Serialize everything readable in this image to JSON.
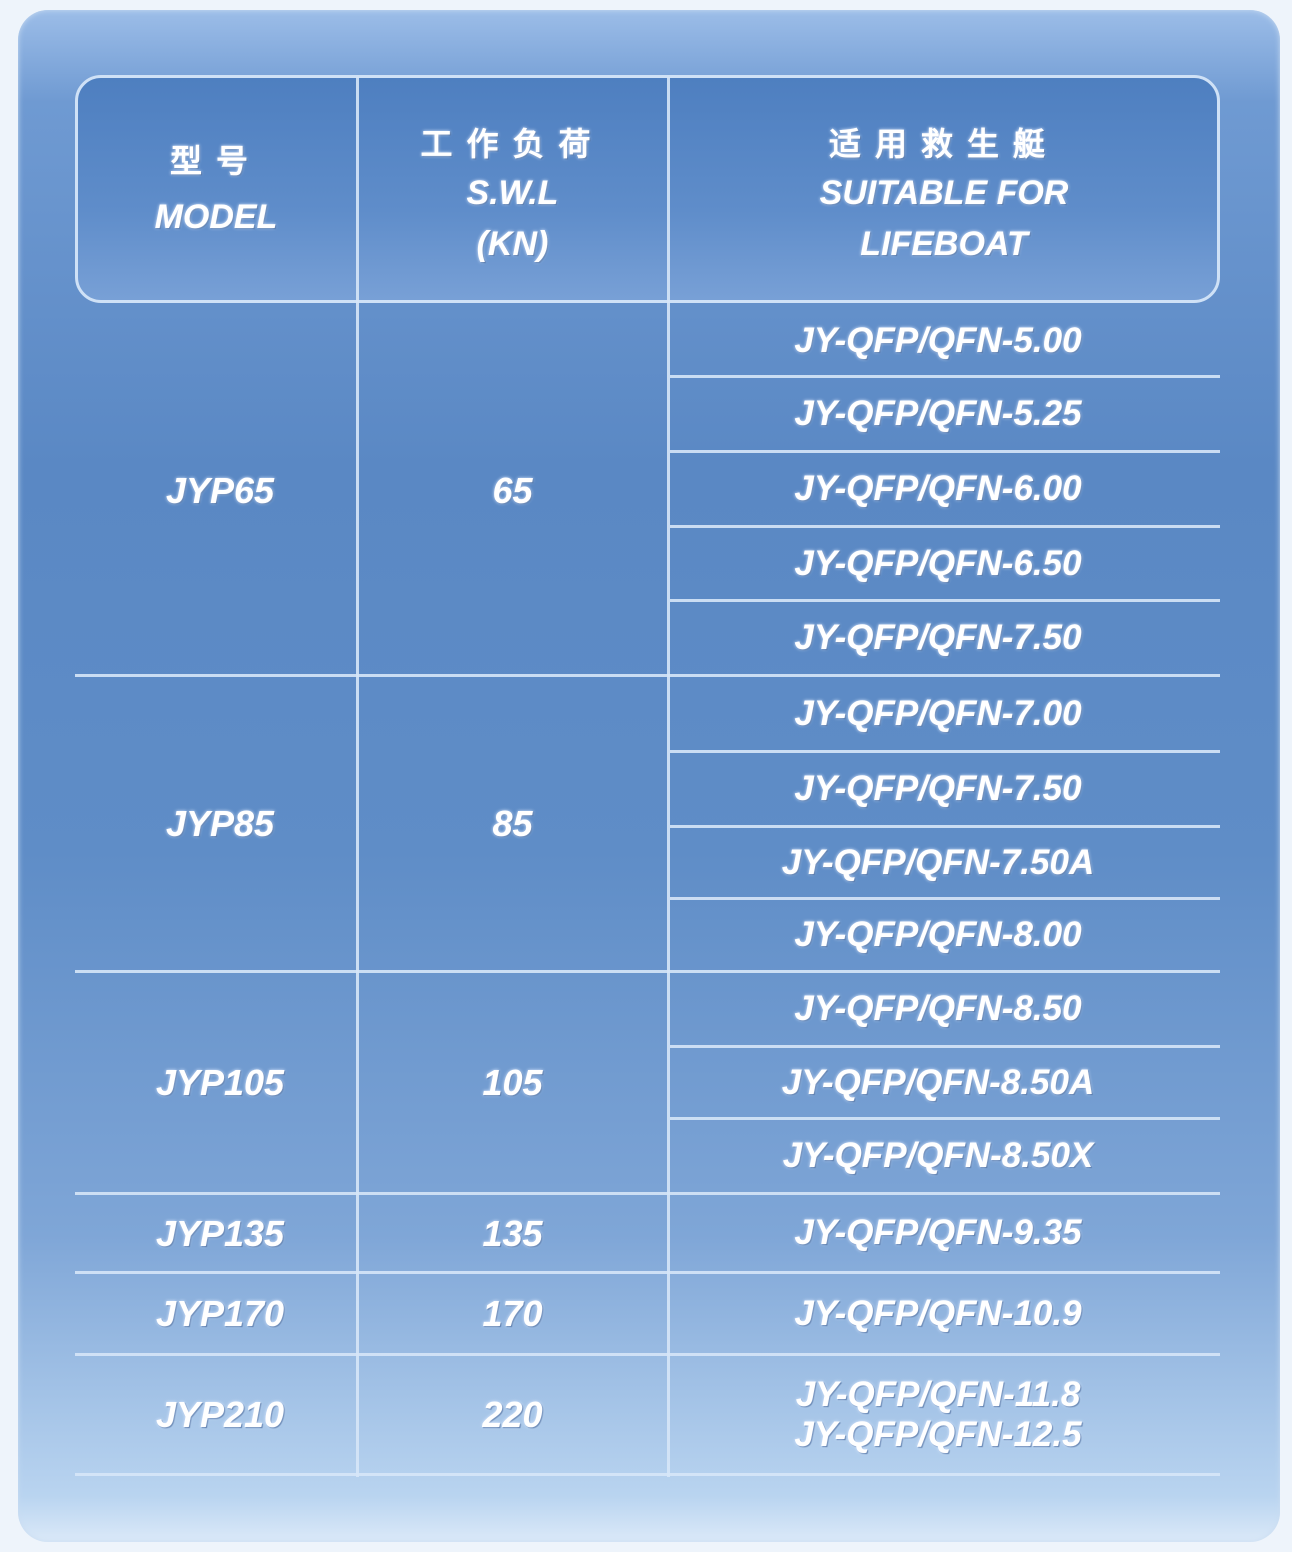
{
  "header": {
    "model": {
      "zh": "型号",
      "en": "MODEL"
    },
    "swl": {
      "zh": "工作负荷",
      "en": "S.W.L",
      "unit": "(KN)"
    },
    "lifeboat": {
      "zh": "适用救生艇",
      "en1": "SUITABLE FOR",
      "en2": "LIFEBOAT"
    }
  },
  "groups": [
    {
      "model": "JYP65",
      "swl": "65",
      "lifeboats": [
        "JY-QFP/QFN-5.00",
        "JY-QFP/QFN-5.25",
        "JY-QFP/QFN-6.00",
        "JY-QFP/QFN-6.50",
        "JY-QFP/QFN-7.50"
      ]
    },
    {
      "model": "JYP85",
      "swl": "85",
      "lifeboats": [
        "JY-QFP/QFN-7.00",
        "JY-QFP/QFN-7.50",
        "JY-QFP/QFN-7.50A",
        "JY-QFP/QFN-8.00"
      ]
    },
    {
      "model": "JYP105",
      "swl": "105",
      "lifeboats": [
        "JY-QFP/QFN-8.50",
        "JY-QFP/QFN-8.50A",
        "JY-QFP/QFN-8.50X"
      ]
    },
    {
      "model": "JYP135",
      "swl": "135",
      "lifeboats": [
        "JY-QFP/QFN-9.35"
      ]
    },
    {
      "model": "JYP170",
      "swl": "170",
      "lifeboats": [
        "JY-QFP/QFN-10.9"
      ]
    },
    {
      "model": "JYP210",
      "swl": "220",
      "lifeboats": [
        "JY-QFP/QFN-11.8\nJY-QFP/QFN-12.5"
      ]
    }
  ]
}
